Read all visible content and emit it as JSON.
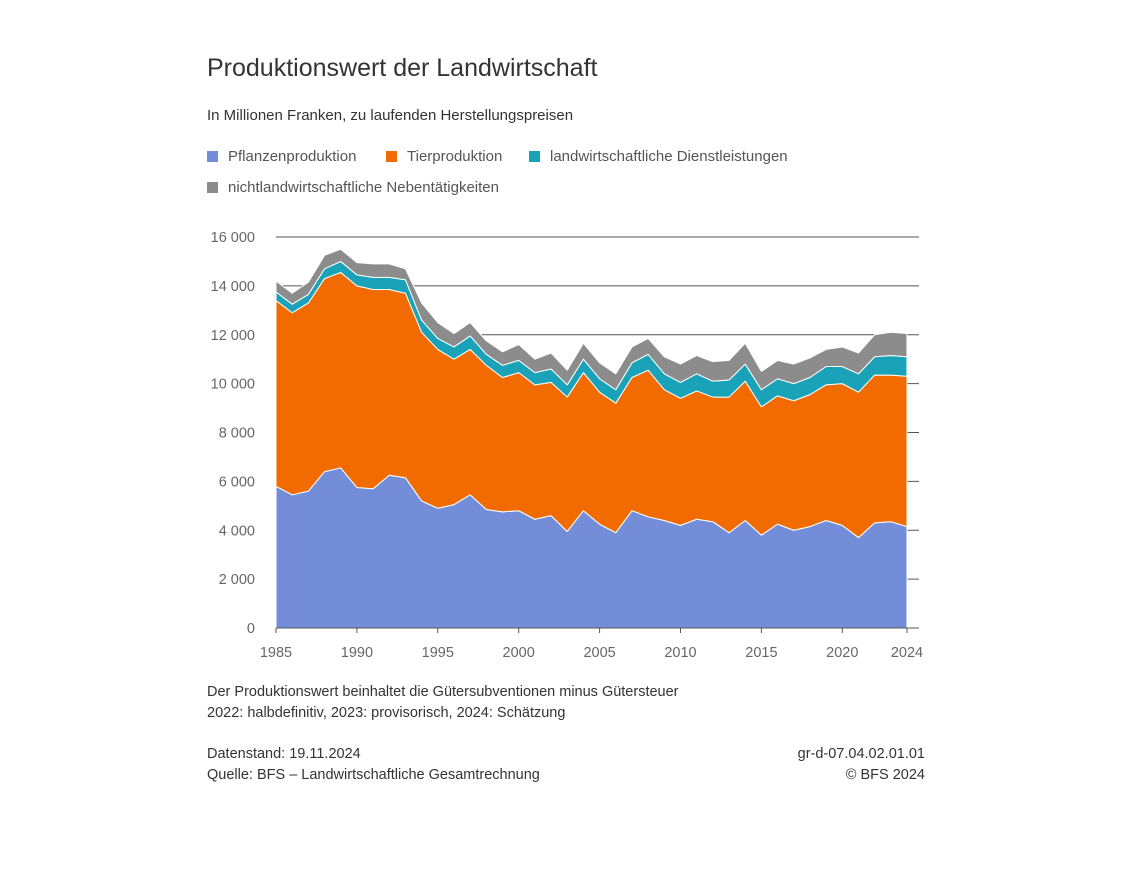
{
  "header": {
    "title": "Produktionswert der Landwirtschaft",
    "subtitle": "In Millionen Franken, zu laufenden Herstellungspreisen"
  },
  "legend": [
    {
      "label": "Pflanzenproduktion",
      "color": "#748dd8"
    },
    {
      "label": "Tierproduktion",
      "color": "#f26b00"
    },
    {
      "label": "landwirtschaftliche Dienstleistungen",
      "color": "#1aa3b8"
    },
    {
      "label": "nichtlandwirtschaftliche Nebentätigkeiten",
      "color": "#8c8c8c"
    }
  ],
  "chart_data": {
    "type": "area",
    "stacked": true,
    "x": [
      1985,
      1986,
      1987,
      1988,
      1989,
      1990,
      1991,
      1992,
      1993,
      1994,
      1995,
      1996,
      1997,
      1998,
      1999,
      2000,
      2001,
      2002,
      2003,
      2004,
      2005,
      2006,
      2007,
      2008,
      2009,
      2010,
      2011,
      2012,
      2013,
      2014,
      2015,
      2016,
      2017,
      2018,
      2019,
      2020,
      2021,
      2022,
      2023,
      2024
    ],
    "x_ticks": [
      "1985",
      "1990",
      "1995",
      "2000",
      "2005",
      "2010",
      "2015",
      "2020",
      "2024"
    ],
    "y_ticks": [
      "0",
      "2 000",
      "4 000",
      "6 000",
      "8 000",
      "10 000",
      "12 000",
      "14 000",
      "16 000"
    ],
    "ylim": [
      0,
      16000
    ],
    "grid": true,
    "series": [
      {
        "name": "Pflanzenproduktion",
        "color": "#748dd8",
        "values": [
          5800,
          5450,
          5600,
          6400,
          6550,
          5750,
          5700,
          6250,
          6150,
          5200,
          4900,
          5050,
          5450,
          4850,
          4750,
          4800,
          4450,
          4600,
          3950,
          4800,
          4250,
          3900,
          4800,
          4550,
          4400,
          4200,
          4450,
          4350,
          3900,
          4400,
          3800,
          4250,
          4000,
          4150,
          4400,
          4200,
          3700,
          4300,
          4350,
          4150
        ]
      },
      {
        "name": "Tierproduktion",
        "color": "#f26b00",
        "values": [
          7600,
          7450,
          7700,
          7900,
          8000,
          8250,
          8150,
          7600,
          7550,
          6900,
          6500,
          5950,
          5950,
          5900,
          5500,
          5650,
          5500,
          5450,
          5500,
          5650,
          5400,
          5300,
          5450,
          6000,
          5350,
          5200,
          5250,
          5100,
          5550,
          5700,
          5250,
          5250,
          5300,
          5400,
          5550,
          5800,
          5950,
          6050,
          6000,
          6150
        ]
      },
      {
        "name": "landwirtschaftliche Dienstleistungen",
        "color": "#1aa3b8",
        "values": [
          350,
          350,
          350,
          400,
          450,
          450,
          500,
          500,
          550,
          500,
          450,
          500,
          550,
          450,
          500,
          500,
          500,
          550,
          500,
          550,
          550,
          550,
          600,
          650,
          650,
          650,
          700,
          650,
          700,
          700,
          700,
          700,
          700,
          700,
          750,
          700,
          750,
          750,
          800,
          800
        ]
      },
      {
        "name": "nichtlandwirtschaftliche Nebentätigkeiten",
        "color": "#8c8c8c",
        "values": [
          450,
          450,
          500,
          550,
          500,
          500,
          550,
          550,
          450,
          700,
          650,
          550,
          550,
          550,
          550,
          650,
          550,
          650,
          600,
          650,
          650,
          650,
          650,
          650,
          700,
          750,
          750,
          800,
          800,
          850,
          750,
          750,
          800,
          800,
          700,
          800,
          850,
          900,
          950,
          950
        ]
      }
    ]
  },
  "notes": {
    "line1": "Der Produktionswert beinhaltet die Gütersubventionen minus Gütersteuer",
    "line2": "2022: halbdefinitiv, 2023: provisorisch, 2024: Schätzung"
  },
  "footer": {
    "stand": "Datenstand: 19.11.2024",
    "quelle": "Quelle: BFS – Landwirtschaftliche Gesamtrechnung",
    "code": "gr-d-07.04.02.01.01",
    "copyright": "© BFS 2024"
  }
}
